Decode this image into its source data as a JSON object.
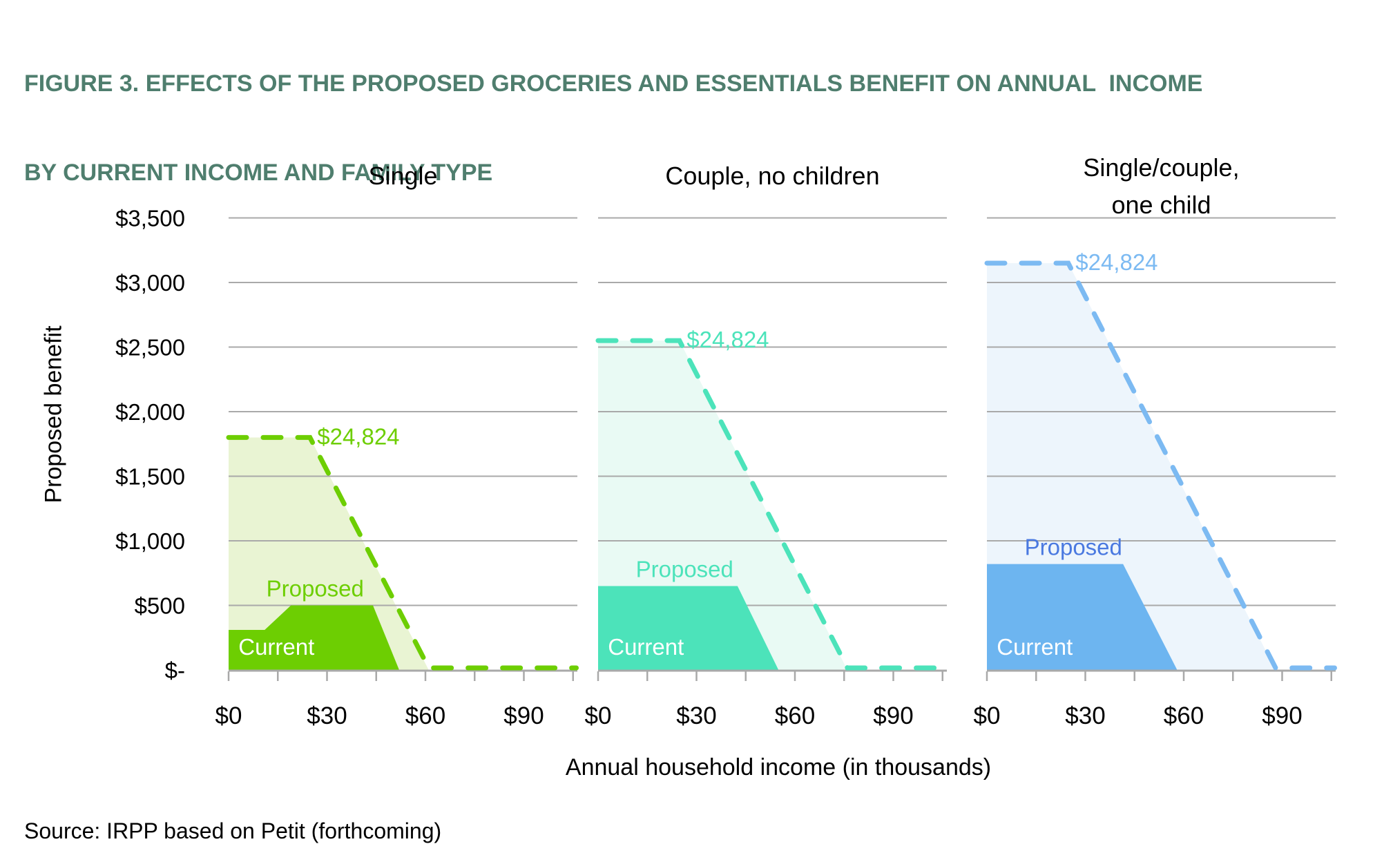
{
  "figure": {
    "title_line1": "FIGURE 3. EFFECTS OF THE PROPOSED GROCERIES AND ESSENTIALS BENEFIT ON ANNUAL  INCOME",
    "title_line2": "BY CURRENT INCOME AND FAMILY TYPE",
    "source": "Source: IRPP based on Petit (forthcoming)"
  },
  "colors": {
    "title": "#4f7e6e",
    "grid": "#a9a9a9",
    "axis": "#a9a9a9",
    "text": "#000000",
    "current_label_text": "#ffffff"
  },
  "chart_data": {
    "type": "area",
    "title": "Effects of the proposed groceries and essentials benefit on annual income by current income and family type",
    "xlabel": "Annual household income (in thousands)",
    "ylabel": "Proposed benefit",
    "x_axis": {
      "label": "Annual household income (in thousands)",
      "domain_thousands": [
        0,
        107
      ],
      "minor_tick_step_thousands": 15,
      "labeled_ticks": [
        {
          "value": 0,
          "label": "$0"
        },
        {
          "value": 30,
          "label": "$30"
        },
        {
          "value": 60,
          "label": "$60"
        },
        {
          "value": 90,
          "label": "$90"
        }
      ]
    },
    "y_axis": {
      "label": "Proposed benefit",
      "ylim": [
        0,
        3500
      ],
      "ticks": [
        {
          "value": 3500,
          "label": "$3,500"
        },
        {
          "value": 3000,
          "label": "$3,000"
        },
        {
          "value": 2500,
          "label": "$2,500"
        },
        {
          "value": 2000,
          "label": "$2,000"
        },
        {
          "value": 1500,
          "label": "$1,500"
        },
        {
          "value": 1000,
          "label": "$1,000"
        },
        {
          "value": 500,
          "label": "$500"
        },
        {
          "value": 0,
          "label": "$-"
        }
      ]
    },
    "panels": [
      {
        "title_lines": [
          "Single"
        ],
        "accent": "#6dce02",
        "proposed_fill": "#e9f4d3",
        "current_fill": "#6dce02",
        "proposed_label": "Proposed",
        "proposed_label_color": "#6dce02",
        "current_label": "Current",
        "callout": "$24,824",
        "proposed_series_income_k_vs_benefit": [
          [
            0,
            1800
          ],
          [
            24.8,
            1800
          ],
          [
            61,
            0
          ],
          [
            106,
            0
          ]
        ],
        "current_series_income_k_vs_benefit": [
          [
            0,
            310
          ],
          [
            11,
            310
          ],
          [
            19,
            500
          ],
          [
            44,
            500
          ],
          [
            52,
            0
          ]
        ]
      },
      {
        "title_lines": [
          "Couple, no children"
        ],
        "accent": "#4ce3ba",
        "proposed_fill": "#e9faf4",
        "current_fill": "#4ce3ba",
        "proposed_label": "Proposed",
        "proposed_label_color": "#4ce3ba",
        "current_label": "Current",
        "callout": "$24,824",
        "proposed_series_income_k_vs_benefit": [
          [
            0,
            2550
          ],
          [
            24.8,
            2550
          ],
          [
            76,
            0
          ],
          [
            106,
            0
          ]
        ],
        "current_series_income_k_vs_benefit": [
          [
            0,
            650
          ],
          [
            42.5,
            650
          ],
          [
            55,
            0
          ]
        ]
      },
      {
        "title_lines": [
          "Single/couple,",
          "one child"
        ],
        "accent": "#7cbaf2",
        "proposed_fill": "#edf5fc",
        "current_fill": "#6db5f0",
        "proposed_label": "Proposed",
        "proposed_label_color": "#4a79e0",
        "current_label": "Current",
        "callout": "$24,824",
        "proposed_series_income_k_vs_benefit": [
          [
            0,
            3150
          ],
          [
            24.8,
            3150
          ],
          [
            88,
            0
          ],
          [
            106,
            0
          ]
        ],
        "current_series_income_k_vs_benefit": [
          [
            0,
            820
          ],
          [
            41.5,
            820
          ],
          [
            58,
            0
          ]
        ]
      }
    ]
  }
}
